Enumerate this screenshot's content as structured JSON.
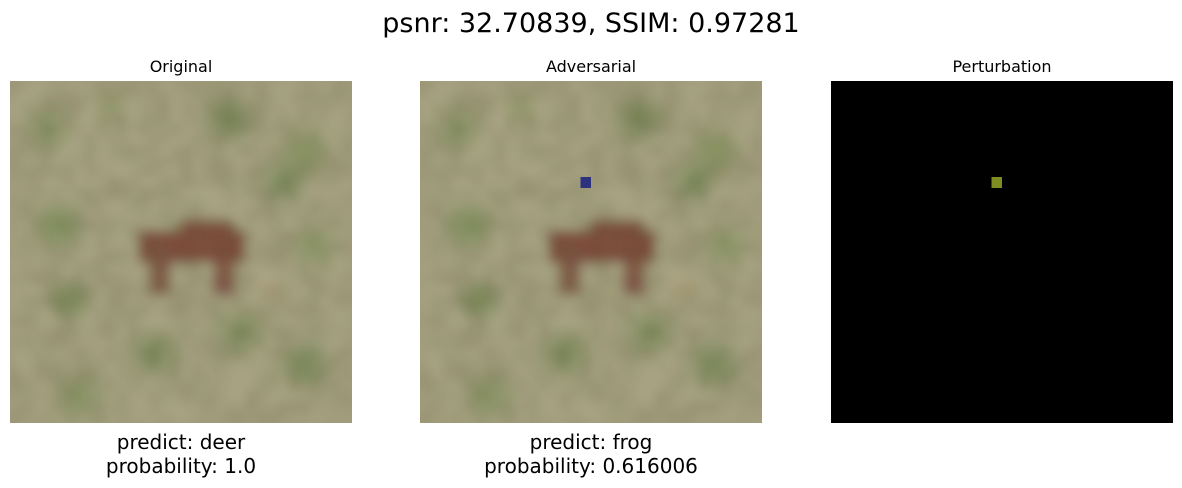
{
  "figure": {
    "title": "psnr: 32.70839, SSIM: 0.97281"
  },
  "panels": [
    {
      "title": "Original",
      "image": "deer-in-grass",
      "predict": "predict: deer",
      "probability": "probability: 1.0"
    },
    {
      "title": "Adversarial",
      "image": "deer-in-grass-with-blue-pixel",
      "predict": "predict: frog",
      "probability": "probability: 0.616006"
    },
    {
      "title": "Perturbation",
      "image": "single-pixel-on-black"
    }
  ],
  "colors": {
    "grass_base": "#9f9b7a",
    "deer_brown": "#7a4f3c",
    "adversarial_pixel": "#2c327e",
    "perturbation_pixel": "#7e8c22",
    "perturbation_background": "#000000"
  }
}
